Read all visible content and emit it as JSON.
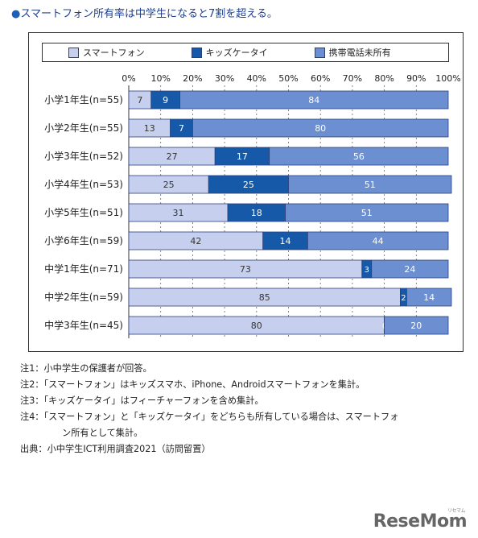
{
  "headline": {
    "bullet": "●",
    "text": "スマートフォン所有率は中学生になると7割を超える。"
  },
  "colors": {
    "smartphone": "#c6d0ee",
    "kids": "#1659a8",
    "none": "#6b8fd1",
    "border": "#2a3f7a"
  },
  "chart_data": {
    "type": "bar",
    "orientation": "horizontal",
    "stacked": true,
    "xlim": [
      0,
      100
    ],
    "ticks": [
      "0%",
      "10%",
      "20%",
      "30%",
      "40%",
      "50%",
      "60%",
      "70%",
      "80%",
      "90%",
      "100%"
    ],
    "legend_position": "top",
    "categories": [
      "小学1年生(n=55)",
      "小学2年生(n=55)",
      "小学3年生(n=52)",
      "小学4年生(n=53)",
      "小学5年生(n=51)",
      "小学6年生(n=59)",
      "中学1年生(n=71)",
      "中学2年生(n=59)",
      "中学3年生(n=45)"
    ],
    "series": [
      {
        "name": "スマートフォン",
        "values": [
          7,
          13,
          27,
          25,
          31,
          42,
          73,
          85,
          80
        ]
      },
      {
        "name": "キッズケータイ",
        "values": [
          9,
          7,
          17,
          25,
          18,
          14,
          3,
          2,
          0
        ]
      },
      {
        "name": "携帯電話未所有",
        "values": [
          84,
          80,
          56,
          51,
          51,
          44,
          24,
          14,
          20
        ]
      }
    ]
  },
  "notes": [
    "注1：小中学生の保護者が回答。",
    "注2：「スマートフォン」はキッズスマホ、iPhone、Androidスマートフォンを集計。",
    "注3：「キッズケータイ」はフィーチャーフォンを含め集計。",
    "注4：「スマートフォン」と「キッズケータイ」をどちらも所有している場合は、スマートフォ",
    "ン所有として集計。",
    "出典：小中学生ICT利用調査2021（訪問留置）"
  ],
  "logo": {
    "text": "ReseMom",
    "sub": "リセマム"
  }
}
